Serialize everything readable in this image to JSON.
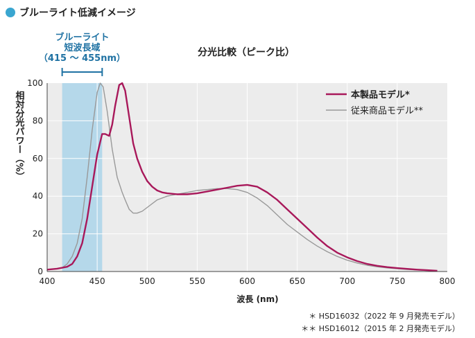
{
  "header": {
    "title": "ブルーライト低減イメージ"
  },
  "chart_data": {
    "type": "line",
    "title": "分光比較（ピーク比）",
    "xlabel": "波長 (nm)",
    "ylabel": "相対分光パワー（%）",
    "xlim": [
      400,
      800
    ],
    "ylim": [
      0,
      100
    ],
    "x_ticks": [
      400,
      450,
      500,
      550,
      600,
      650,
      700,
      750,
      800
    ],
    "y_ticks": [
      0,
      20,
      40,
      60,
      80,
      100
    ],
    "grid": true,
    "legend_position": "top-right",
    "band": {
      "label_lines": [
        "ブルーライト",
        "短波長域",
        "（415 ～ 455nm）"
      ],
      "from": 415,
      "to": 455,
      "color": "#b5d8ea"
    },
    "series": [
      {
        "name": "本製品モデル*",
        "color": "#a8185a",
        "points": [
          [
            400,
            1
          ],
          [
            410,
            1.5
          ],
          [
            415,
            2
          ],
          [
            420,
            2.5
          ],
          [
            425,
            4
          ],
          [
            430,
            8
          ],
          [
            435,
            15
          ],
          [
            440,
            28
          ],
          [
            445,
            45
          ],
          [
            450,
            62
          ],
          [
            455,
            73
          ],
          [
            458,
            73
          ],
          [
            462,
            72
          ],
          [
            465,
            78
          ],
          [
            468,
            88
          ],
          [
            472,
            99
          ],
          [
            475,
            100
          ],
          [
            478,
            96
          ],
          [
            482,
            82
          ],
          [
            486,
            68
          ],
          [
            490,
            60
          ],
          [
            495,
            53
          ],
          [
            500,
            48
          ],
          [
            505,
            45
          ],
          [
            510,
            43
          ],
          [
            515,
            42
          ],
          [
            520,
            41.5
          ],
          [
            530,
            41
          ],
          [
            540,
            41
          ],
          [
            550,
            41.5
          ],
          [
            560,
            42.5
          ],
          [
            570,
            43.5
          ],
          [
            580,
            44.5
          ],
          [
            590,
            45.5
          ],
          [
            600,
            46
          ],
          [
            610,
            45
          ],
          [
            620,
            42
          ],
          [
            630,
            38
          ],
          [
            640,
            33
          ],
          [
            650,
            28
          ],
          [
            660,
            23
          ],
          [
            670,
            18
          ],
          [
            680,
            13.5
          ],
          [
            690,
            10
          ],
          [
            700,
            7.5
          ],
          [
            710,
            5.5
          ],
          [
            720,
            4
          ],
          [
            730,
            3
          ],
          [
            740,
            2.3
          ],
          [
            750,
            1.8
          ],
          [
            760,
            1.4
          ],
          [
            770,
            1
          ],
          [
            780,
            0.7
          ],
          [
            790,
            0.4
          ]
        ]
      },
      {
        "name": "従来商品モデル**",
        "color": "#999999",
        "points": [
          [
            400,
            1
          ],
          [
            410,
            1.5
          ],
          [
            415,
            2
          ],
          [
            420,
            4
          ],
          [
            425,
            8
          ],
          [
            430,
            15
          ],
          [
            435,
            28
          ],
          [
            440,
            50
          ],
          [
            445,
            75
          ],
          [
            450,
            95
          ],
          [
            453,
            100
          ],
          [
            456,
            98
          ],
          [
            460,
            85
          ],
          [
            465,
            65
          ],
          [
            470,
            50
          ],
          [
            475,
            42
          ],
          [
            478,
            38
          ],
          [
            482,
            33
          ],
          [
            486,
            31
          ],
          [
            490,
            31
          ],
          [
            495,
            32
          ],
          [
            500,
            34
          ],
          [
            510,
            38
          ],
          [
            520,
            40
          ],
          [
            530,
            41
          ],
          [
            540,
            42
          ],
          [
            550,
            43
          ],
          [
            560,
            43.5
          ],
          [
            570,
            44
          ],
          [
            580,
            44
          ],
          [
            590,
            43.5
          ],
          [
            600,
            42
          ],
          [
            610,
            39
          ],
          [
            620,
            35
          ],
          [
            630,
            30
          ],
          [
            640,
            25
          ],
          [
            650,
            21
          ],
          [
            660,
            17
          ],
          [
            670,
            13.5
          ],
          [
            680,
            10.5
          ],
          [
            690,
            8
          ],
          [
            700,
            6
          ],
          [
            710,
            4.5
          ],
          [
            720,
            3.3
          ],
          [
            730,
            2.5
          ],
          [
            740,
            1.9
          ],
          [
            750,
            1.5
          ],
          [
            760,
            1.1
          ],
          [
            770,
            0.8
          ],
          [
            780,
            0.5
          ],
          [
            790,
            0.3
          ]
        ]
      }
    ]
  },
  "footnotes": [
    "＊ HSD16032（2022 年 9 月発売モデル）",
    "＊＊ HSD16012（2015 年 2 月発売モデル）"
  ]
}
